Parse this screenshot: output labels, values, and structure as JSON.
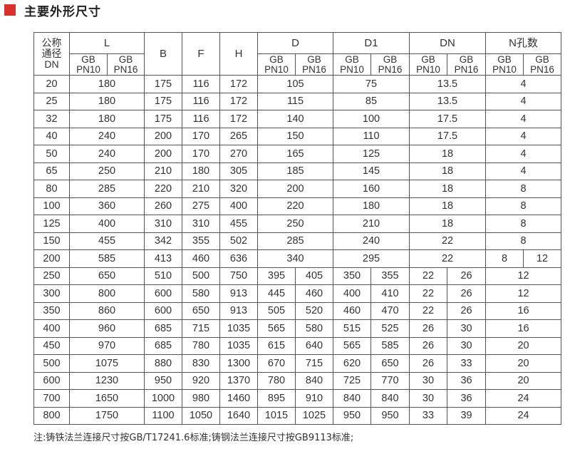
{
  "title": "主要外形尺寸",
  "accent_color": "#d9322e",
  "table": {
    "dn_header": [
      "公称",
      "通径",
      "DN"
    ],
    "groups": [
      "L",
      "B",
      "F",
      "H",
      "D",
      "D1",
      "DN",
      "N孔数"
    ],
    "sub_top": "GB",
    "sub_pn10": "PN10",
    "sub_pn16": "PN16",
    "rows": [
      {
        "dn": "20",
        "L": "180",
        "B": "175",
        "F": "116",
        "H": "172",
        "D": [
          "105"
        ],
        "D1": [
          "75"
        ],
        "DN": [
          "13.5"
        ],
        "N": [
          "4"
        ]
      },
      {
        "dn": "25",
        "L": "180",
        "B": "175",
        "F": "116",
        "H": "172",
        "D": [
          "115"
        ],
        "D1": [
          "85"
        ],
        "DN": [
          "13.5"
        ],
        "N": [
          "4"
        ]
      },
      {
        "dn": "32",
        "L": "180",
        "B": "175",
        "F": "116",
        "H": "172",
        "D": [
          "140"
        ],
        "D1": [
          "100"
        ],
        "DN": [
          "17.5"
        ],
        "N": [
          "4"
        ]
      },
      {
        "dn": "40",
        "L": "240",
        "B": "200",
        "F": "170",
        "H": "265",
        "D": [
          "150"
        ],
        "D1": [
          "110"
        ],
        "DN": [
          "17.5"
        ],
        "N": [
          "4"
        ]
      },
      {
        "dn": "50",
        "L": "240",
        "B": "200",
        "F": "170",
        "H": "270",
        "D": [
          "165"
        ],
        "D1": [
          "125"
        ],
        "DN": [
          "18"
        ],
        "N": [
          "4"
        ]
      },
      {
        "dn": "65",
        "L": "250",
        "B": "210",
        "F": "180",
        "H": "305",
        "D": [
          "185"
        ],
        "D1": [
          "145"
        ],
        "DN": [
          "18"
        ],
        "N": [
          "4"
        ]
      },
      {
        "dn": "80",
        "L": "285",
        "B": "220",
        "F": "210",
        "H": "320",
        "D": [
          "200"
        ],
        "D1": [
          "160"
        ],
        "DN": [
          "18"
        ],
        "N": [
          "8"
        ]
      },
      {
        "dn": "100",
        "L": "360",
        "B": "260",
        "F": "275",
        "H": "400",
        "D": [
          "220"
        ],
        "D1": [
          "180"
        ],
        "DN": [
          "18"
        ],
        "N": [
          "8"
        ]
      },
      {
        "dn": "125",
        "L": "400",
        "B": "310",
        "F": "310",
        "H": "455",
        "D": [
          "250"
        ],
        "D1": [
          "210"
        ],
        "DN": [
          "18"
        ],
        "N": [
          "8"
        ]
      },
      {
        "dn": "150",
        "L": "455",
        "B": "342",
        "F": "355",
        "H": "502",
        "D": [
          "285"
        ],
        "D1": [
          "240"
        ],
        "DN": [
          "22"
        ],
        "N": [
          "8"
        ]
      },
      {
        "dn": "200",
        "L": "585",
        "B": "413",
        "F": "460",
        "H": "636",
        "D": [
          "340"
        ],
        "D1": [
          "295"
        ],
        "DN": [
          "22"
        ],
        "N": [
          "8",
          "12"
        ]
      },
      {
        "dn": "250",
        "L": "650",
        "B": "510",
        "F": "500",
        "H": "750",
        "D": [
          "395",
          "405"
        ],
        "D1": [
          "350",
          "355"
        ],
        "DN": [
          "22",
          "26"
        ],
        "N": [
          "12"
        ]
      },
      {
        "dn": "300",
        "L": "800",
        "B": "600",
        "F": "580",
        "H": "913",
        "D": [
          "445",
          "460"
        ],
        "D1": [
          "400",
          "410"
        ],
        "DN": [
          "22",
          "26"
        ],
        "N": [
          "12"
        ]
      },
      {
        "dn": "350",
        "L": "860",
        "B": "600",
        "F": "650",
        "H": "913",
        "D": [
          "505",
          "520"
        ],
        "D1": [
          "460",
          "470"
        ],
        "DN": [
          "22",
          "26"
        ],
        "N": [
          "16"
        ]
      },
      {
        "dn": "400",
        "L": "960",
        "B": "685",
        "F": "715",
        "H": "1035",
        "D": [
          "565",
          "580"
        ],
        "D1": [
          "515",
          "525"
        ],
        "DN": [
          "26",
          "30"
        ],
        "N": [
          "16"
        ]
      },
      {
        "dn": "450",
        "L": "970",
        "B": "685",
        "F": "780",
        "H": "1035",
        "D": [
          "615",
          "640"
        ],
        "D1": [
          "565",
          "585"
        ],
        "DN": [
          "26",
          "30"
        ],
        "N": [
          "20"
        ]
      },
      {
        "dn": "500",
        "L": "1075",
        "B": "880",
        "F": "830",
        "H": "1300",
        "D": [
          "670",
          "715"
        ],
        "D1": [
          "620",
          "650"
        ],
        "DN": [
          "26",
          "33"
        ],
        "N": [
          "20"
        ]
      },
      {
        "dn": "600",
        "L": "1230",
        "B": "950",
        "F": "920",
        "H": "1370",
        "D": [
          "780",
          "840"
        ],
        "D1": [
          "725",
          "770"
        ],
        "DN": [
          "30",
          "36"
        ],
        "N": [
          "20"
        ]
      },
      {
        "dn": "700",
        "L": "1650",
        "B": "1000",
        "F": "980",
        "H": "1460",
        "D": [
          "895",
          "910"
        ],
        "D1": [
          "840",
          "840"
        ],
        "DN": [
          "30",
          "36"
        ],
        "N": [
          "24"
        ]
      },
      {
        "dn": "800",
        "L": "1750",
        "B": "1100",
        "F": "1050",
        "H": "1640",
        "D": [
          "1015",
          "1025"
        ],
        "D1": [
          "950",
          "950"
        ],
        "DN": [
          "33",
          "39"
        ],
        "N": [
          "24"
        ]
      }
    ]
  },
  "note": "注:铸铁法兰连接尺寸按GB/T17241.6标准;铸钢法兰连接尺寸按GB9113标准;"
}
